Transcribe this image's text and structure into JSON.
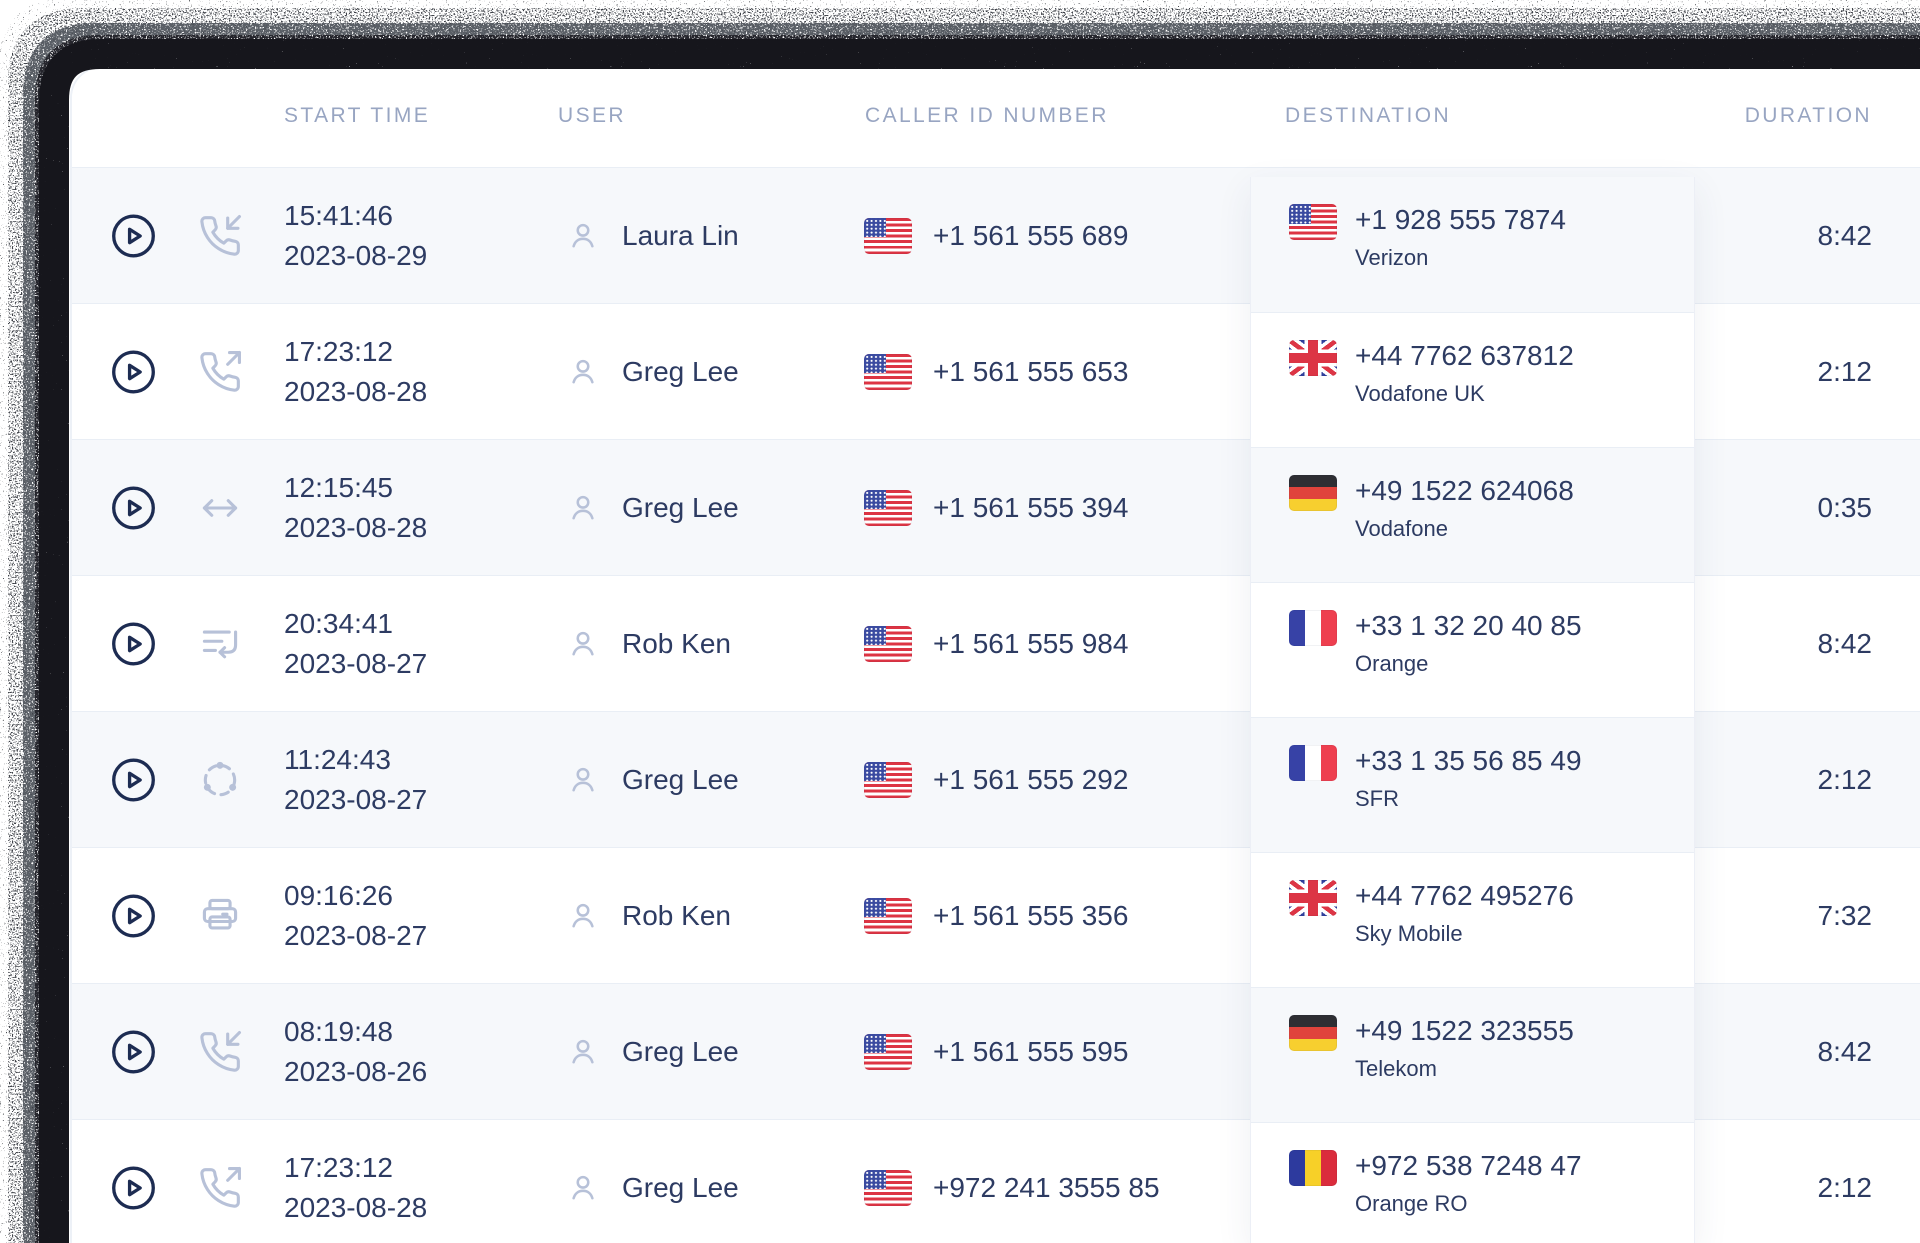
{
  "header": {
    "columns": [
      "START TIME",
      "USER",
      "CALLER ID NUMBER",
      "DESTINATION",
      "DURATION"
    ]
  },
  "colors": {
    "text_dark": "#2d3b62",
    "header_text": "#98a5c2",
    "icon_muted": "#b7c1d8",
    "play_icon": "#1d2c52",
    "row_stripe": "#f6f8fb",
    "divider": "#e9eef5",
    "card_bg": "#ffffff",
    "grain_border": "#16181d"
  },
  "rows": [
    {
      "call_type": "incoming",
      "time": "15:41:46",
      "date": "2023-08-29",
      "user": "Laura Lin",
      "caller_flag": "us",
      "caller_number": "+1 561 555 689",
      "dest_flag": "us",
      "dest_number": "+1 928 555 7874",
      "dest_carrier": "Verizon",
      "duration": "8:42"
    },
    {
      "call_type": "outgoing",
      "time": "17:23:12",
      "date": "2023-08-28",
      "user": "Greg Lee",
      "caller_flag": "us",
      "caller_number": "+1 561 555 653",
      "dest_flag": "uk",
      "dest_number": "+44 7762 637812",
      "dest_carrier": "Vodafone UK",
      "duration": "2:12"
    },
    {
      "call_type": "transfer",
      "time": "12:15:45",
      "date": "2023-08-28",
      "user": "Greg Lee",
      "caller_flag": "us",
      "caller_number": "+1 561 555 394",
      "dest_flag": "de",
      "dest_number": "+49 1522 624068",
      "dest_carrier": "Vodafone",
      "duration": "0:35"
    },
    {
      "call_type": "queue",
      "time": "20:34:41",
      "date": "2023-08-27",
      "user": "Rob Ken",
      "caller_flag": "us",
      "caller_number": "+1 561 555 984",
      "dest_flag": "fr",
      "dest_number": "+33 1 32 20 40 85",
      "dest_carrier": "Orange",
      "duration": "8:42"
    },
    {
      "call_type": "conference",
      "time": "11:24:43",
      "date": "2023-08-27",
      "user": "Greg Lee",
      "caller_flag": "us",
      "caller_number": "+1 561 555 292",
      "dest_flag": "fr",
      "dest_number": "+33 1 35 56 85 49",
      "dest_carrier": "SFR",
      "duration": "2:12"
    },
    {
      "call_type": "fax",
      "time": "09:16:26",
      "date": "2023-08-27",
      "user": "Rob Ken",
      "caller_flag": "us",
      "caller_number": "+1 561 555 356",
      "dest_flag": "uk",
      "dest_number": "+44 7762 495276",
      "dest_carrier": "Sky Mobile",
      "duration": "7:32"
    },
    {
      "call_type": "incoming",
      "time": "08:19:48",
      "date": "2023-08-26",
      "user": "Greg Lee",
      "caller_flag": "us",
      "caller_number": "+1 561 555 595",
      "dest_flag": "de",
      "dest_number": "+49 1522 323555",
      "dest_carrier": "Telekom",
      "duration": "8:42"
    },
    {
      "call_type": "outgoing",
      "time": "17:23:12",
      "date": "2023-08-28",
      "user": "Greg Lee",
      "caller_flag": "us",
      "caller_number": "+972 241 3555 85",
      "dest_flag": "ro",
      "dest_number": "+972 538 7248 47",
      "dest_carrier": "Orange RO",
      "duration": "2:12"
    }
  ]
}
